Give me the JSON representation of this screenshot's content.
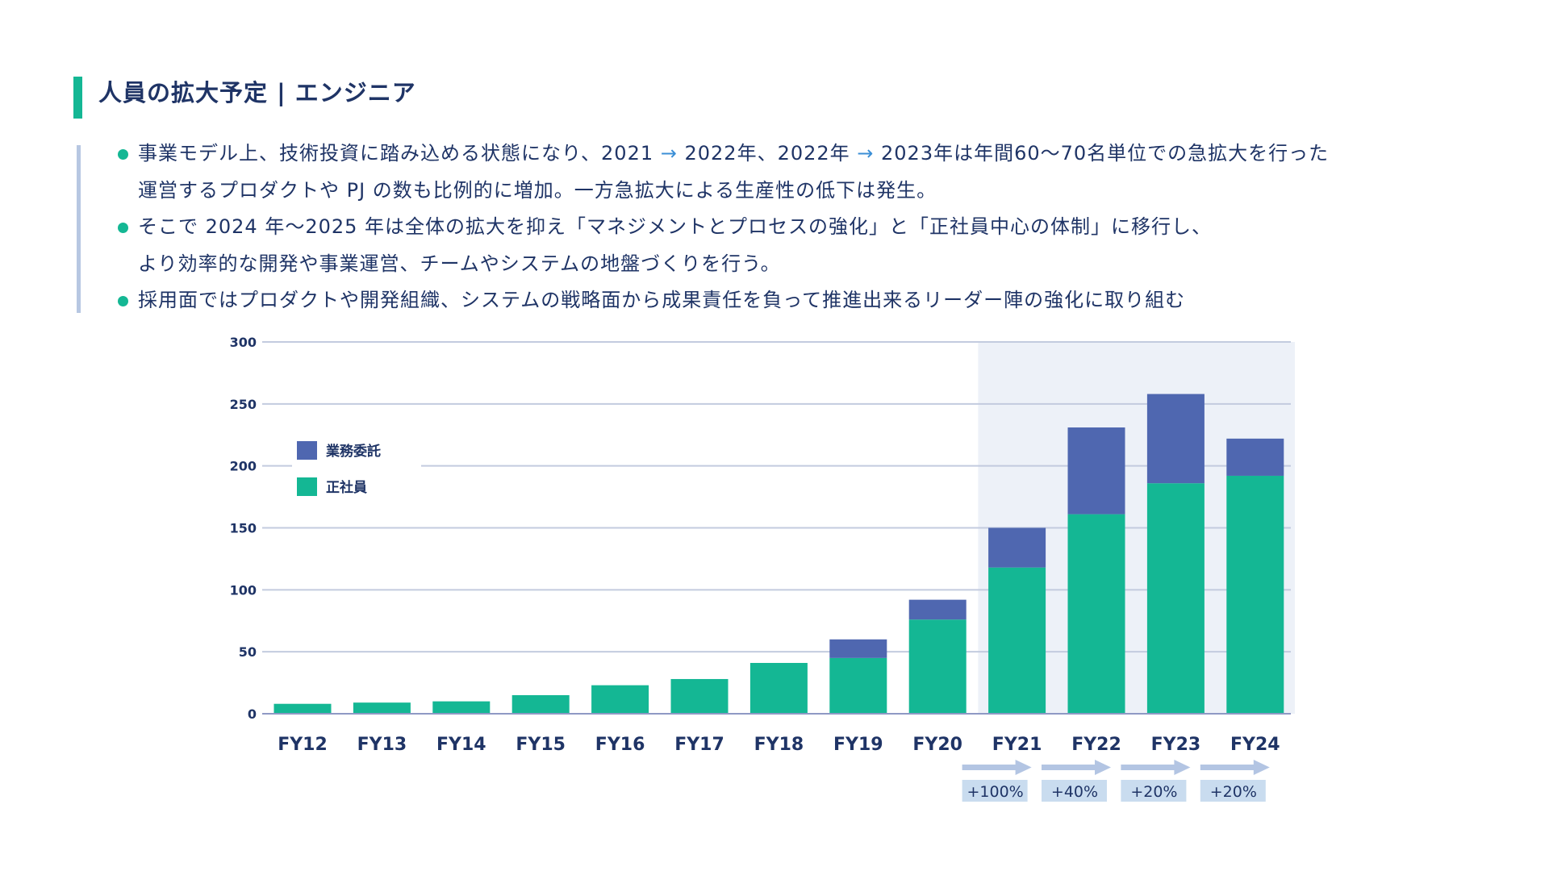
{
  "header": {
    "title": "人員の拡大予定 | エンジニア"
  },
  "bullets": [
    {
      "lines": [
        [
          "事業モデル上、技術投資に踏み込める状態になり、2021 ",
          "→",
          " 2022年、2022年 ",
          "→",
          " 2023年は年間60〜70名単位での急拡大を行った"
        ],
        [
          "運営するプロダクトや PJ の数も比例的に増加。一方急拡大による生産性の低下は発生。"
        ]
      ]
    },
    {
      "lines": [
        [
          "そこで 2024 年〜2025 年は全体の拡大を抑え「マネジメントとプロセスの強化」と「正社員中心の体制」に移行し、"
        ],
        [
          "より効率的な開発や事業運営、チームやシステムの地盤づくりを行う。"
        ]
      ]
    },
    {
      "lines": [
        [
          "採用面ではプロダクトや開発組織、システムの戦略面から成果責任を負って推進出来るリーダー陣の強化に取り組む"
        ]
      ]
    }
  ],
  "colors": {
    "accent_green": "#14b794",
    "outsourcing_blue": "#4f67b0",
    "text_navy": "#1f3466",
    "highlight_bg": "#edf1f8",
    "growth_box": "#c9dcef",
    "arrow": "#b3c5e3"
  },
  "chart_data": {
    "type": "bar",
    "stacked": true,
    "title": "",
    "xlabel": "",
    "ylabel": "",
    "ylim": [
      0,
      300
    ],
    "yticks": [
      0,
      50,
      100,
      150,
      200,
      250,
      300
    ],
    "grid": true,
    "legend_position": "top-left",
    "categories": [
      "FY12",
      "FY13",
      "FY14",
      "FY15",
      "FY16",
      "FY17",
      "FY18",
      "FY19",
      "FY20",
      "FY21",
      "FY22",
      "FY23",
      "FY24"
    ],
    "series": [
      {
        "name": "正社員",
        "color": "#14b794",
        "values": [
          8,
          9,
          10,
          15,
          23,
          28,
          41,
          45,
          76,
          118,
          161,
          186,
          192
        ]
      },
      {
        "name": "業務委託",
        "color": "#4f67b0",
        "values": [
          0,
          0,
          0,
          0,
          0,
          0,
          0,
          15,
          16,
          32,
          70,
          72,
          30
        ]
      }
    ],
    "legend": [
      "業務委託",
      "正社員"
    ],
    "highlight_range": [
      "FY21",
      "FY24"
    ],
    "annotations": [
      {
        "category": "FY21",
        "label": "+100%"
      },
      {
        "category": "FY22",
        "label": "+40%"
      },
      {
        "category": "FY23",
        "label": "+20%"
      },
      {
        "category": "FY24",
        "label": "+20%"
      }
    ]
  }
}
